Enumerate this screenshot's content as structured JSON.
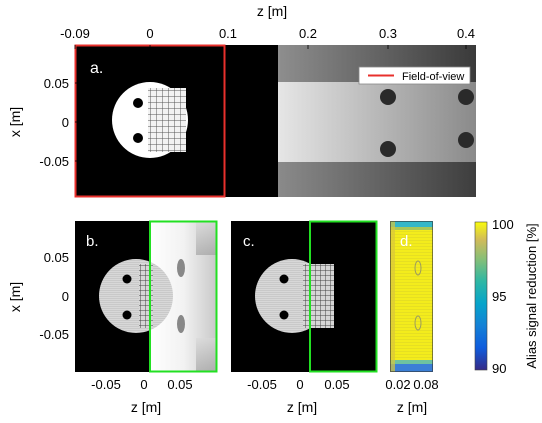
{
  "figure": {
    "panel_a": {
      "label": "a.",
      "x_axis_label": "z [m]",
      "y_axis_label": "x [m]",
      "x_ticks": [
        "-0.09",
        "0",
        "0.1",
        "0.2",
        "0.3",
        "0.4"
      ],
      "y_ticks": [
        "0.05",
        "0",
        "-0.05"
      ],
      "legend_label": "Field-of-view",
      "legend_color": "#e8302c"
    },
    "panel_b": {
      "label": "b.",
      "x_axis_label": "z [m]",
      "y_axis_label": "x [m]",
      "x_ticks": [
        "-0.05",
        "0",
        "0.05"
      ],
      "y_ticks": [
        "0.05",
        "0",
        "-0.05"
      ]
    },
    "panel_c": {
      "label": "c.",
      "x_axis_label": "z [m]",
      "x_ticks": [
        "-0.05",
        "0",
        "0.05"
      ]
    },
    "panel_d": {
      "label": "d.",
      "x_axis_label": "z [m]",
      "x_ticks": [
        "0.02",
        "0.08"
      ]
    },
    "colorbar": {
      "label": "Alias signal reduction [%]",
      "ticks": [
        "100",
        "95",
        "90"
      ],
      "colormap": "parula"
    },
    "fov_box_color_b_c": "#22e022"
  }
}
